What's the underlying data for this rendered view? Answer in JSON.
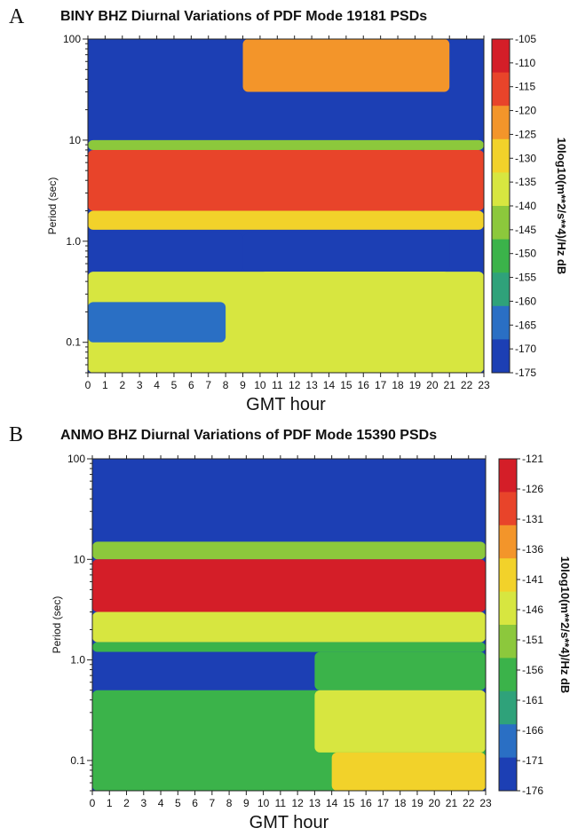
{
  "chart_data": [
    {
      "type": "heatmap",
      "panel_label": "A",
      "title": "BINY BHZ Diurnal Variations of PDF Mode 19181 PSDs",
      "xlabel": "GMT hour",
      "ylabel": "Period (sec)",
      "colorbar_label": "10log10(m**2/s**4)/Hz dB",
      "x_ticks": [
        "0",
        "1",
        "2",
        "3",
        "4",
        "5",
        "6",
        "7",
        "8",
        "9",
        "10",
        "11",
        "12",
        "13",
        "14",
        "15",
        "16",
        "17",
        "18",
        "19",
        "20",
        "21",
        "22",
        "23"
      ],
      "y_ticks": [
        {
          "value": 100,
          "label": "100"
        },
        {
          "value": 10,
          "label": "10"
        },
        {
          "value": 1.0,
          "label": "1.0"
        },
        {
          "value": 0.1,
          "label": "0.1"
        }
      ],
      "ylim": [
        0.05,
        100
      ],
      "y_scale": "log",
      "colorbar_ticks": [
        "-105",
        "-110",
        "-115",
        "-120",
        "-125",
        "-130",
        "-135",
        "-140",
        "-145",
        "-150",
        "-155",
        "-160",
        "-165",
        "-170",
        "-175"
      ],
      "clim": [
        -175,
        -105
      ],
      "colors": [
        "#1c3fb4",
        "#2a6fc4",
        "#2fa27a",
        "#3bb34a",
        "#8cc83c",
        "#d7e640",
        "#f2d22a",
        "#f3952a",
        "#e8442a",
        "#d41e28"
      ],
      "bands": [
        {
          "period": [
            30,
            100
          ],
          "hours": [
            0,
            9
          ],
          "db": -172
        },
        {
          "period": [
            30,
            100
          ],
          "hours": [
            9,
            21
          ],
          "db": -125
        },
        {
          "period": [
            10,
            30
          ],
          "hours": [
            0,
            23
          ],
          "db": -172
        },
        {
          "period": [
            8,
            10
          ],
          "hours": [
            0,
            23
          ],
          "db": -142
        },
        {
          "period": [
            2,
            8
          ],
          "hours": [
            0,
            23
          ],
          "db": -118
        },
        {
          "period": [
            1.3,
            2
          ],
          "hours": [
            0,
            23
          ],
          "db": -132
        },
        {
          "period": [
            0.5,
            1.2
          ],
          "hours": [
            0,
            9
          ],
          "db": -170
        },
        {
          "period": [
            0.5,
            1.2
          ],
          "hours": [
            9,
            21
          ],
          "db": -170
        },
        {
          "period": [
            0.05,
            0.5
          ],
          "hours": [
            0,
            23
          ],
          "db": -140
        },
        {
          "period": [
            0.1,
            0.25
          ],
          "hours": [
            0,
            8
          ],
          "db": -168
        },
        {
          "period": [
            0.05,
            0.5
          ],
          "hours": [
            10,
            21
          ],
          "db": -134
        }
      ]
    },
    {
      "type": "heatmap",
      "panel_label": "B",
      "title": "ANMO BHZ Diurnal Variations of PDF Mode 15390 PSDs",
      "xlabel": "GMT hour",
      "ylabel": "Period (sec)",
      "colorbar_label": "10log10(m**2/s**4)/Hz dB",
      "x_ticks": [
        "0",
        "1",
        "2",
        "3",
        "4",
        "5",
        "6",
        "7",
        "8",
        "9",
        "10",
        "11",
        "12",
        "13",
        "14",
        "15",
        "16",
        "17",
        "18",
        "19",
        "20",
        "21",
        "22",
        "23"
      ],
      "y_ticks": [
        {
          "value": 100,
          "label": "100"
        },
        {
          "value": 10,
          "label": "10"
        },
        {
          "value": 1.0,
          "label": "1.0"
        },
        {
          "value": 0.1,
          "label": "0.1"
        }
      ],
      "ylim": [
        0.05,
        100
      ],
      "y_scale": "log",
      "colorbar_ticks": [
        "-121",
        "-126",
        "-131",
        "-136",
        "-141",
        "-146",
        "-151",
        "-156",
        "-161",
        "-166",
        "-171",
        "-176"
      ],
      "clim": [
        -176,
        -121
      ],
      "colors": [
        "#1c3fb4",
        "#2a6fc4",
        "#2fa27a",
        "#3bb34a",
        "#8cc83c",
        "#d7e640",
        "#f2d22a",
        "#f3952a",
        "#e8442a",
        "#d41e28"
      ],
      "bands": [
        {
          "period": [
            15,
            100
          ],
          "hours": [
            0,
            23
          ],
          "db": -173
        },
        {
          "period": [
            10,
            15
          ],
          "hours": [
            0,
            23
          ],
          "db": -150
        },
        {
          "period": [
            3,
            10
          ],
          "hours": [
            0,
            23
          ],
          "db": -126
        },
        {
          "period": [
            1.5,
            3
          ],
          "hours": [
            0,
            23
          ],
          "db": -145
        },
        {
          "period": [
            1.2,
            1.5
          ],
          "hours": [
            0,
            23
          ],
          "db": -155
        },
        {
          "period": [
            0.5,
            1.2
          ],
          "hours": [
            0,
            13
          ],
          "db": -172
        },
        {
          "period": [
            0.5,
            1.2
          ],
          "hours": [
            13,
            23
          ],
          "db": -156
        },
        {
          "period": [
            0.05,
            0.5
          ],
          "hours": [
            0,
            23
          ],
          "db": -156
        },
        {
          "period": [
            0.12,
            0.5
          ],
          "hours": [
            13,
            23
          ],
          "db": -147
        },
        {
          "period": [
            0.05,
            0.12
          ],
          "hours": [
            14,
            23
          ],
          "db": -143
        }
      ]
    }
  ]
}
